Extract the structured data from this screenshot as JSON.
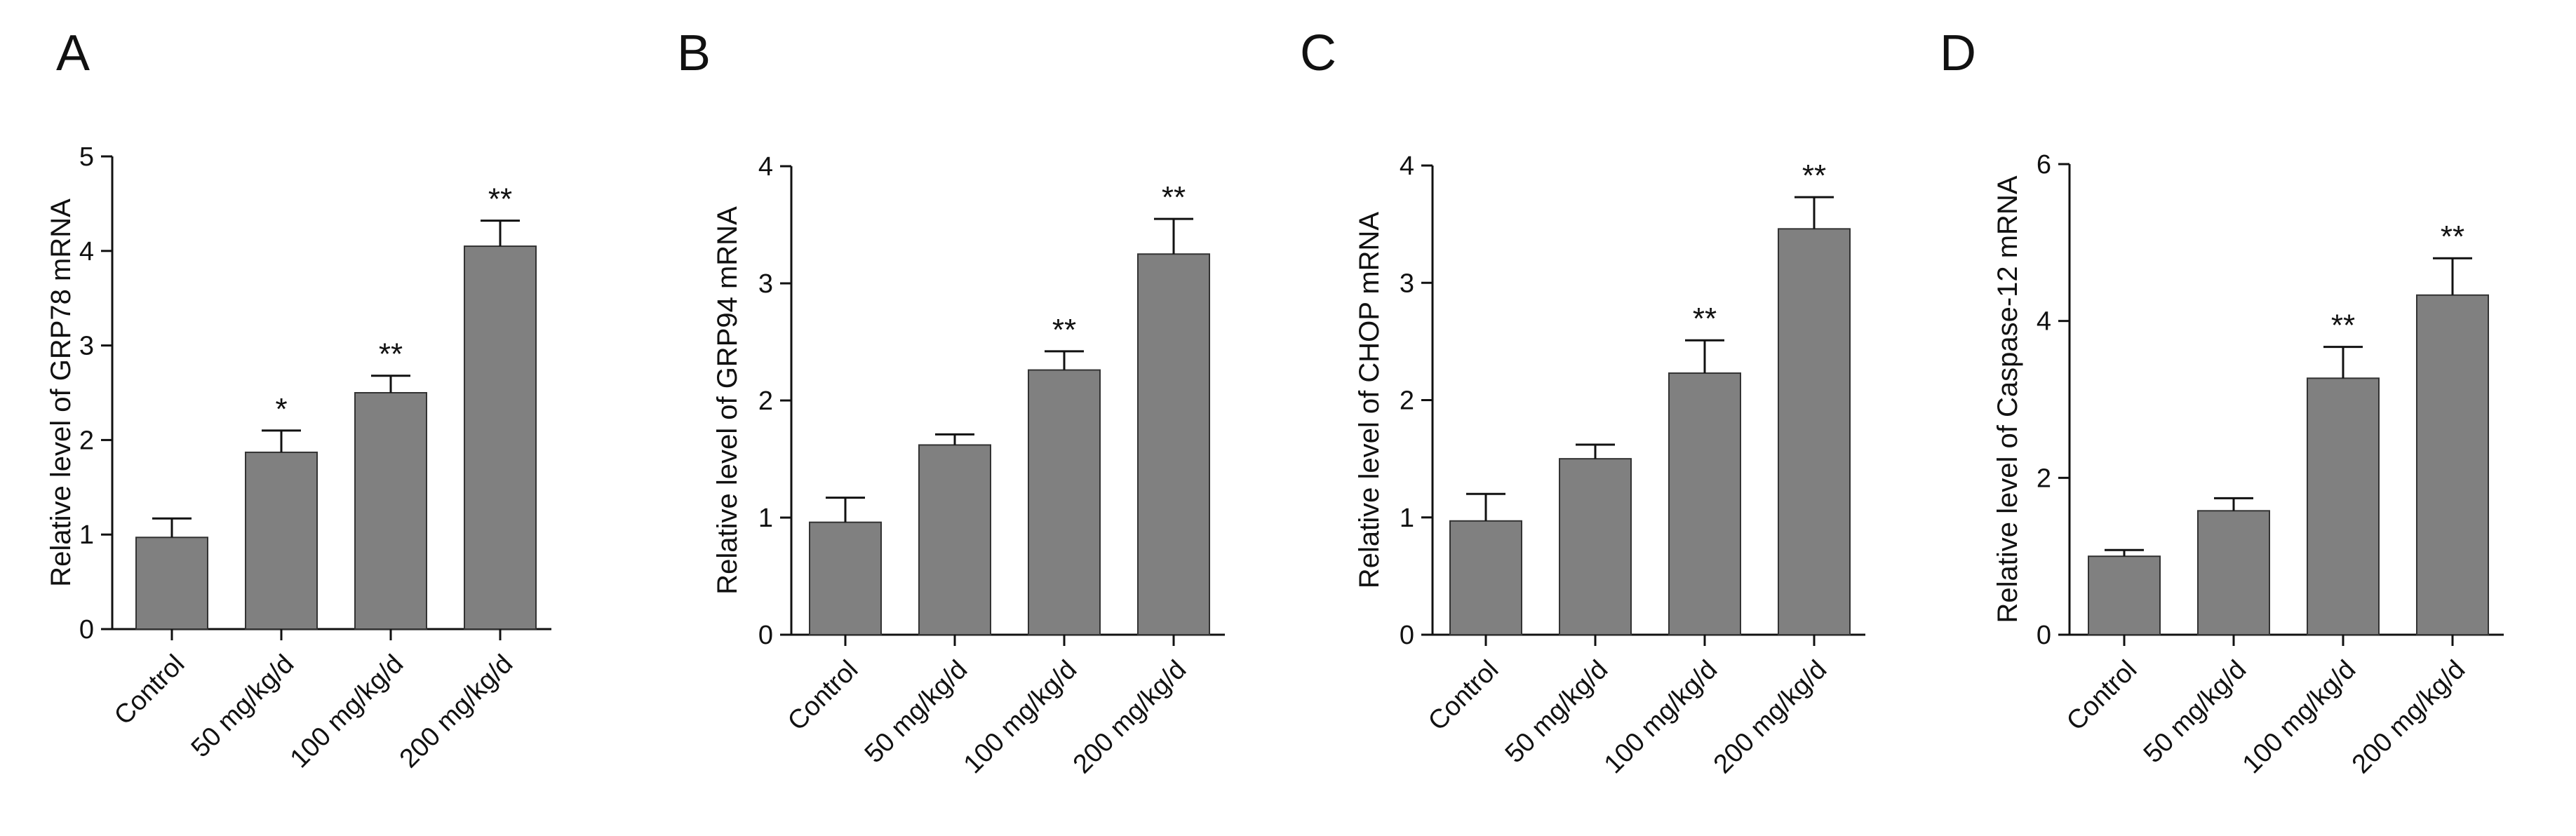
{
  "figure": {
    "type": "grouped bar chart panels",
    "bar_color": "#808080",
    "axis_color": "#111111"
  },
  "chart_data": [
    {
      "type": "bar",
      "panel": "A",
      "title": "",
      "xlabel": "",
      "ylabel": "Relative level of GRP78 mRNA",
      "categories": [
        "Control",
        "50 mg/kg/d",
        "100 mg/kg/d",
        "200 mg/kg/d"
      ],
      "values": [
        0.97,
        1.87,
        2.5,
        4.05
      ],
      "errors": [
        0.2,
        0.23,
        0.18,
        0.27
      ],
      "significance": [
        "",
        "*",
        "**",
        "**"
      ],
      "ylim": [
        0,
        5
      ],
      "yticks": [
        0,
        1,
        2,
        3,
        4,
        5
      ]
    },
    {
      "type": "bar",
      "panel": "B",
      "title": "",
      "xlabel": "",
      "ylabel": "Relative level of GRP94 mRNA",
      "categories": [
        "Control",
        "50 mg/kg/d",
        "100 mg/kg/d",
        "200 mg/kg/d"
      ],
      "values": [
        0.96,
        1.62,
        2.26,
        3.25
      ],
      "errors": [
        0.21,
        0.09,
        0.16,
        0.3
      ],
      "significance": [
        "",
        "",
        "**",
        "**"
      ],
      "ylim": [
        0,
        4
      ],
      "yticks": [
        0,
        1,
        2,
        3,
        4
      ]
    },
    {
      "type": "bar",
      "panel": "C",
      "title": "",
      "xlabel": "",
      "ylabel": "Relative level of CHOP mRNA",
      "categories": [
        "Control",
        "50 mg/kg/d",
        "100 mg/kg/d",
        "200 mg/kg/d"
      ],
      "values": [
        0.97,
        1.5,
        2.23,
        3.46
      ],
      "errors": [
        0.23,
        0.12,
        0.28,
        0.27
      ],
      "significance": [
        "",
        "",
        "**",
        "**"
      ],
      "ylim": [
        0,
        4
      ],
      "yticks": [
        0,
        1,
        2,
        3,
        4
      ]
    },
    {
      "type": "bar",
      "panel": "D",
      "title": "",
      "xlabel": "",
      "ylabel": "Relative level of Caspase-12 mRNA",
      "categories": [
        "Control",
        "50 mg/kg/d",
        "100 mg/kg/d",
        "200 mg/kg/d"
      ],
      "values": [
        1.0,
        1.58,
        3.27,
        4.33
      ],
      "errors": [
        0.08,
        0.16,
        0.4,
        0.47
      ],
      "significance": [
        "",
        "",
        "**",
        "**"
      ],
      "ylim": [
        0,
        6
      ],
      "yticks": [
        0,
        2,
        4,
        6
      ]
    }
  ]
}
